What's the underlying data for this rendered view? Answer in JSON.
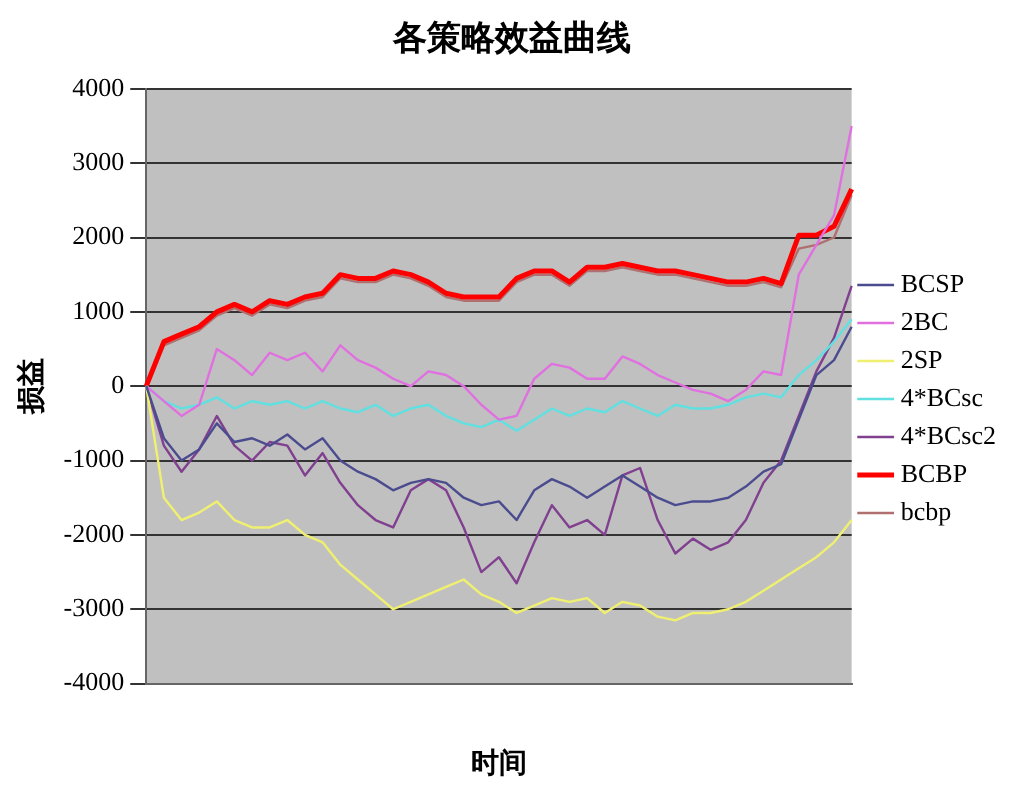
{
  "chart_data": {
    "type": "line",
    "title": "各策略效益曲线",
    "xlabel": "时间",
    "ylabel": "损益",
    "categories": [
      null,
      null,
      null,
      null,
      null,
      null,
      null,
      null,
      null,
      null,
      null,
      null,
      null,
      null,
      null,
      null,
      null,
      null,
      null,
      null,
      null,
      null,
      null,
      null,
      null,
      null,
      null,
      null,
      null,
      null,
      null,
      null,
      null,
      null,
      null,
      null,
      null,
      null,
      null,
      null,
      null
    ],
    "ylim": [
      -4000,
      4000
    ],
    "yticks": [
      -4000,
      -3000,
      -2000,
      -1000,
      0,
      1000,
      2000,
      3000,
      4000
    ],
    "grid": "y",
    "legend": "right",
    "marker": "none",
    "line_style": "solid",
    "series": [
      {
        "name": "BCSP",
        "color": "#4b4b8f",
        "values": [
          0,
          -700,
          -1000,
          -850,
          -500,
          -750,
          -700,
          -800,
          -650,
          -850,
          -700,
          -1000,
          -1150,
          -1250,
          -1400,
          -1300,
          -1250,
          -1300,
          -1500,
          -1600,
          -1550,
          -1800,
          -1400,
          -1250,
          -1350,
          -1500,
          -1350,
          -1200,
          -1350,
          -1500,
          -1600,
          -1550,
          -1550,
          -1500,
          -1350,
          -1150,
          -1050,
          -450,
          150,
          350,
          800
        ]
      },
      {
        "name": "2BC",
        "color": "#e070e0",
        "values": [
          0,
          -200,
          -400,
          -250,
          500,
          350,
          150,
          450,
          350,
          450,
          200,
          550,
          350,
          250,
          100,
          0,
          200,
          150,
          0,
          -250,
          -450,
          -400,
          100,
          300,
          250,
          100,
          100,
          400,
          300,
          150,
          50,
          -50,
          -100,
          -200,
          -50,
          200,
          150,
          1500,
          1900,
          2300,
          3500
        ]
      },
      {
        "name": "2SP",
        "color": "#f0f070",
        "values": [
          0,
          -1500,
          -1800,
          -1700,
          -1550,
          -1800,
          -1900,
          -1900,
          -1800,
          -2000,
          -2100,
          -2400,
          -2600,
          -2800,
          -3000,
          -2900,
          -2800,
          -2700,
          -2600,
          -2800,
          -2900,
          -3050,
          -2950,
          -2850,
          -2900,
          -2850,
          -3050,
          -2900,
          -2950,
          -3100,
          -3150,
          -3050,
          -3050,
          -3000,
          -2900,
          -2750,
          -2600,
          -2450,
          -2300,
          -2100,
          -1800
        ]
      },
      {
        "name": "4*BCsc",
        "color": "#60e0e0",
        "values": [
          0,
          -200,
          -300,
          -250,
          -150,
          -300,
          -200,
          -250,
          -200,
          -300,
          -200,
          -300,
          -350,
          -250,
          -400,
          -300,
          -250,
          -400,
          -500,
          -550,
          -450,
          -600,
          -450,
          -300,
          -400,
          -300,
          -350,
          -200,
          -300,
          -400,
          -250,
          -300,
          -300,
          -250,
          -150,
          -100,
          -150,
          150,
          350,
          600,
          900
        ]
      },
      {
        "name": "4*BCsc2",
        "color": "#80408f",
        "values": [
          0,
          -800,
          -1150,
          -850,
          -400,
          -800,
          -1000,
          -750,
          -800,
          -1200,
          -900,
          -1300,
          -1600,
          -1800,
          -1900,
          -1400,
          -1250,
          -1400,
          -1900,
          -2500,
          -2300,
          -2650,
          -2100,
          -1600,
          -1900,
          -1800,
          -2000,
          -1200,
          -1100,
          -1800,
          -2250,
          -2050,
          -2200,
          -2100,
          -1800,
          -1300,
          -1000,
          -400,
          200,
          650,
          1350
        ]
      },
      {
        "name": "BCBP",
        "color": "#ff0000",
        "values": [
          0,
          600,
          700,
          800,
          1000,
          1100,
          1000,
          1150,
          1100,
          1200,
          1250,
          1500,
          1450,
          1450,
          1550,
          1500,
          1400,
          1250,
          1200,
          1200,
          1200,
          1450,
          1550,
          1550,
          1400,
          1600,
          1600,
          1650,
          1600,
          1550,
          1550,
          1500,
          1450,
          1400,
          1400,
          1450,
          1380,
          2030,
          2030,
          2150,
          2650
        ]
      },
      {
        "name": "bcbp",
        "color": "#b07070",
        "values": [
          0,
          550,
          650,
          750,
          950,
          1050,
          950,
          1100,
          1050,
          1150,
          1200,
          1450,
          1400,
          1400,
          1500,
          1450,
          1350,
          1200,
          1150,
          1150,
          1150,
          1400,
          1500,
          1500,
          1350,
          1550,
          1550,
          1600,
          1550,
          1500,
          1500,
          1450,
          1400,
          1350,
          1350,
          1400,
          1330,
          1850,
          1900,
          2000,
          2570
        ]
      }
    ]
  }
}
